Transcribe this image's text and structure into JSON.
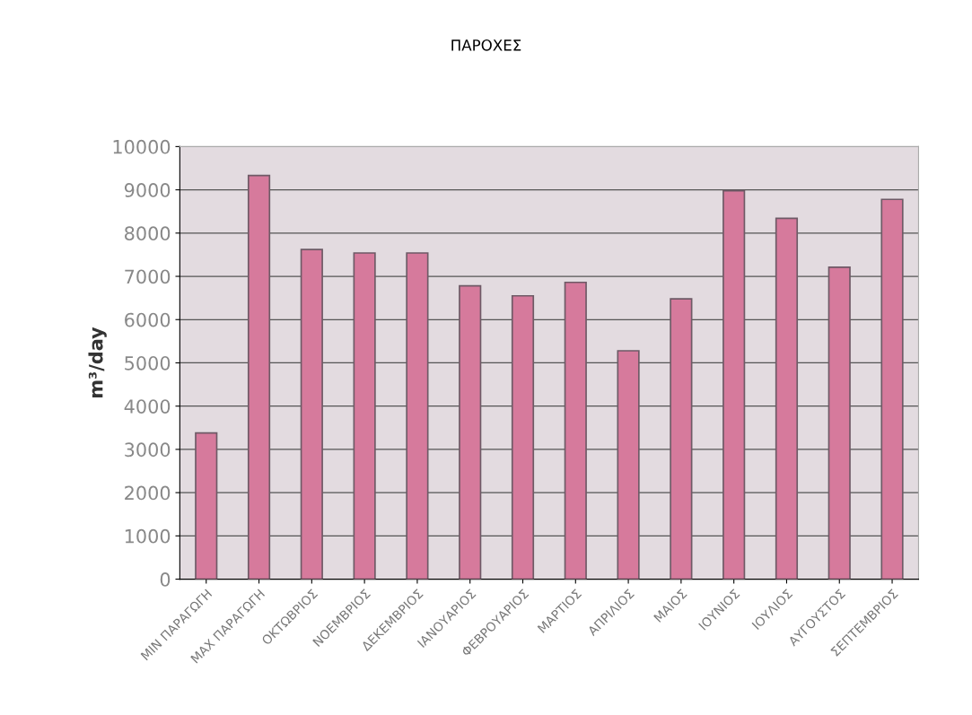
{
  "chart_data": {
    "type": "bar",
    "title": "ΠΑΡΟΧΕΣ",
    "ylabel": "m³/day",
    "categories": [
      "MIN ΠΑΡΑΓΩΓΗ",
      "MAX ΠΑΡΑΓΩΓΗ",
      "ΟΚΤΩΒΡΙΟΣ",
      "ΝΟΕΜΒΡΙΟΣ",
      "ΔΕΚΕΜΒΡΙΟΣ",
      "ΙΑΝΟΥΑΡΙΟΣ",
      "ΦΕΒΡΟΥΑΡΙΟΣ",
      "ΜΑΡΤΙΟΣ",
      "ΑΠΡΙΛΙΟΣ",
      "ΜΑΙΟΣ",
      "ΙΟΥΝΙΟΣ",
      "ΙΟΥΛΙΟΣ",
      "ΑΥΓΟΥΣΤΟΣ",
      "ΣΕΠΤΕΜΒΡΙΟΣ"
    ],
    "values": [
      3380,
      9330,
      7620,
      7540,
      7540,
      6780,
      6550,
      6860,
      5280,
      6480,
      8980,
      8340,
      7210,
      8780
    ],
    "color": "#d67a9c",
    "ylim": [
      0,
      10000
    ],
    "yticks": [
      0,
      1000,
      2000,
      3000,
      4000,
      5000,
      6000,
      7000,
      8000,
      9000,
      10000
    ],
    "grid": "y"
  }
}
